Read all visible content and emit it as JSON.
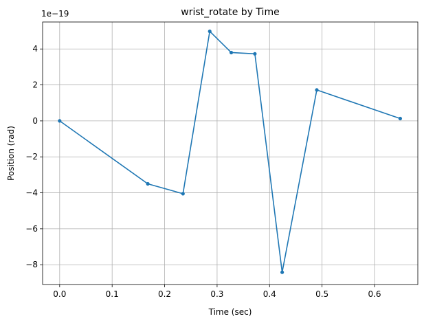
{
  "chart_data": {
    "type": "line",
    "title": "wrist_rotate by Time",
    "xlabel": "Time (sec)",
    "ylabel": "Position (rad)",
    "y_offset_text": "1e−19",
    "xlim": [
      -0.0325,
      0.6825
    ],
    "ylim": [
      -9.1,
      5.5
    ],
    "x_ticks": [
      0.0,
      0.1,
      0.2,
      0.3,
      0.4,
      0.5,
      0.6
    ],
    "x_tick_labels": [
      "0.0",
      "0.1",
      "0.2",
      "0.3",
      "0.4",
      "0.5",
      "0.6"
    ],
    "y_ticks": [
      -8,
      -6,
      -4,
      -2,
      0,
      2,
      4
    ],
    "y_tick_labels": [
      "−8",
      "−6",
      "−4",
      "−2",
      "0",
      "2",
      "4"
    ],
    "grid": true,
    "series": [
      {
        "color": "#1f77b4",
        "marker": "circle",
        "x": [
          0.0,
          0.168,
          0.235,
          0.286,
          0.327,
          0.372,
          0.424,
          0.49,
          0.649
        ],
        "y": [
          0.0,
          -3.5,
          -4.05,
          4.98,
          3.8,
          3.73,
          -8.42,
          1.72,
          0.13
        ]
      }
    ]
  }
}
